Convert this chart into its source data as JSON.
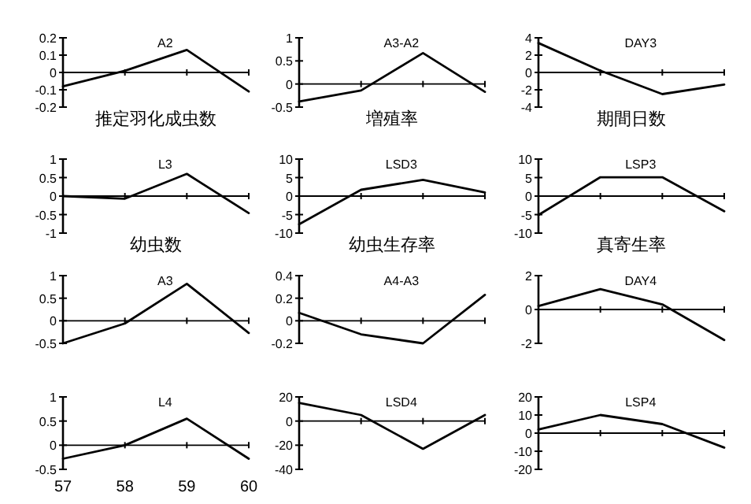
{
  "chart_data": [
    {
      "type": "line",
      "title": "A2",
      "xlabel": "推定羽化成虫数",
      "categories": [
        null,
        null,
        null,
        null
      ],
      "values": [
        -0.08,
        0.01,
        0.13,
        -0.11
      ],
      "color": "#000000",
      "ylim": [
        -0.2,
        0.2
      ],
      "yticks": [
        -0.2,
        -0.1,
        0,
        0.1,
        0.2
      ],
      "tick_labels": "y"
    },
    {
      "type": "line",
      "title": "A3-A2",
      "xlabel": "増殖率",
      "categories": [
        null,
        null,
        null,
        null
      ],
      "values": [
        -0.38,
        -0.14,
        0.67,
        -0.17
      ],
      "color": "#000000",
      "ylim": [
        -0.5,
        1
      ],
      "yticks": [
        -0.5,
        0,
        0.5,
        1
      ],
      "tick_labels": "y"
    },
    {
      "type": "line",
      "title": "DAY3",
      "xlabel": "期間日数",
      "categories": [
        null,
        null,
        null,
        null
      ],
      "values": [
        3.4,
        0.2,
        -2.5,
        -1.4
      ],
      "color": "#000000",
      "ylim": [
        -4,
        4
      ],
      "yticks": [
        -4,
        -2,
        0,
        2,
        4
      ],
      "tick_labels": "y"
    },
    {
      "type": "line",
      "title": "L3",
      "xlabel": "幼虫数",
      "categories": [
        null,
        null,
        null,
        null
      ],
      "values": [
        0,
        -0.07,
        0.6,
        -0.46
      ],
      "color": "#000000",
      "ylim": [
        -1,
        1
      ],
      "yticks": [
        -1,
        -0.5,
        0,
        0.5,
        1
      ],
      "tick_labels": "y"
    },
    {
      "type": "line",
      "title": "LSD3",
      "xlabel": "幼虫生存率",
      "categories": [
        null,
        null,
        null,
        null
      ],
      "values": [
        -7.6,
        1.7,
        4.4,
        1
      ],
      "color": "#000000",
      "ylim": [
        -10,
        10
      ],
      "yticks": [
        -10,
        -5,
        0,
        5,
        10
      ],
      "tick_labels": "y"
    },
    {
      "type": "line",
      "title": "LSP3",
      "xlabel": "真寄生率",
      "categories": [
        null,
        null,
        null,
        null
      ],
      "values": [
        -5.1,
        5.1,
        5.1,
        -4.1
      ],
      "color": "#000000",
      "ylim": [
        -10,
        10
      ],
      "yticks": [
        -10,
        -5,
        0,
        5,
        10
      ],
      "tick_labels": "y"
    },
    {
      "type": "line",
      "title": "A3",
      "categories": [
        null,
        null,
        null,
        null
      ],
      "values": [
        -0.5,
        -0.06,
        0.82,
        -0.27
      ],
      "color": "#000000",
      "ylim": [
        -0.5,
        1
      ],
      "yticks": [
        -0.5,
        0,
        0.5,
        1
      ],
      "tick_labels": "y"
    },
    {
      "type": "line",
      "title": "A4-A3",
      "categories": [
        null,
        null,
        null,
        null
      ],
      "values": [
        0.07,
        -0.12,
        -0.2,
        0.23
      ],
      "color": "#000000",
      "ylim": [
        -0.2,
        0.4
      ],
      "yticks": [
        -0.2,
        0,
        0.2,
        0.4
      ],
      "tick_labels": "y"
    },
    {
      "type": "line",
      "title": "DAY4",
      "categories": [
        null,
        null,
        null,
        null
      ],
      "values": [
        0.2,
        1.2,
        0.3,
        -1.8
      ],
      "color": "#000000",
      "ylim": [
        -2,
        2
      ],
      "yticks": [
        -2,
        0,
        2
      ],
      "tick_labels": "y"
    },
    {
      "type": "line",
      "title": "L4",
      "categories": [
        "57",
        "58",
        "59",
        "60"
      ],
      "values": [
        -0.28,
        0,
        0.55,
        -0.28
      ],
      "color": "#000000",
      "ylim": [
        -0.5,
        1
      ],
      "yticks": [
        -0.5,
        0,
        0.5,
        1
      ]
    },
    {
      "type": "line",
      "title": "LSD4",
      "categories": [
        null,
        null,
        null,
        null
      ],
      "values": [
        15,
        5,
        -23,
        5
      ],
      "color": "#000000",
      "ylim": [
        -40,
        20
      ],
      "yticks": [
        -40,
        -20,
        0,
        20
      ],
      "tick_labels": "y"
    },
    {
      "type": "line",
      "title": "LSP4",
      "categories": [
        null,
        null,
        null,
        null
      ],
      "values": [
        2,
        10,
        5,
        -8
      ],
      "color": "#000000",
      "ylim": [
        -20,
        20
      ],
      "yticks": [
        -20,
        -10,
        0,
        10,
        20
      ],
      "tick_labels": "y"
    }
  ]
}
